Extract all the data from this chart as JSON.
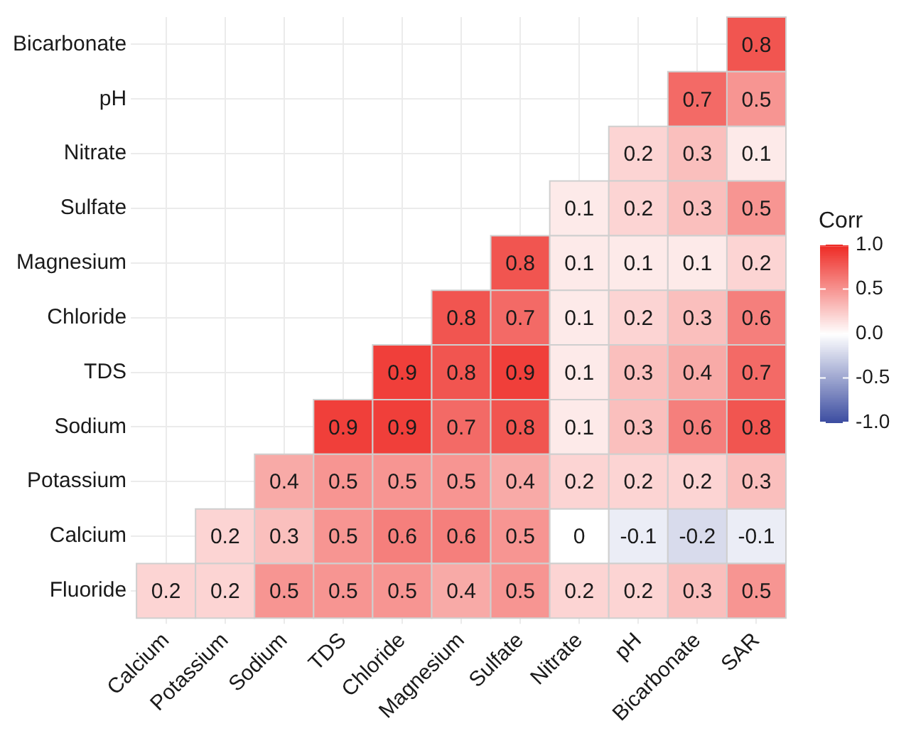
{
  "chart_data": {
    "type": "heatmap",
    "clabel": "Corr",
    "data_labels": true,
    "grid": true,
    "categories": [
      "Calcium",
      "Potassium",
      "Sodium",
      "TDS",
      "Chloride",
      "Magnesium",
      "Sulfate",
      "Nitrate",
      "pH",
      "Bicarbonate",
      "SAR"
    ],
    "y_categories": [
      "Bicarbonate",
      "pH",
      "Nitrate",
      "Sulfate",
      "Magnesium",
      "Chloride",
      "TDS",
      "Sodium",
      "Potassium",
      "Calcium",
      "Fluoride"
    ],
    "cells": [
      [
        null,
        null,
        null,
        null,
        null,
        null,
        null,
        null,
        null,
        null,
        0.8
      ],
      [
        null,
        null,
        null,
        null,
        null,
        null,
        null,
        null,
        null,
        0.7,
        0.5
      ],
      [
        null,
        null,
        null,
        null,
        null,
        null,
        null,
        null,
        0.2,
        0.3,
        0.1
      ],
      [
        null,
        null,
        null,
        null,
        null,
        null,
        null,
        0.1,
        0.2,
        0.3,
        0.5
      ],
      [
        null,
        null,
        null,
        null,
        null,
        null,
        0.8,
        0.1,
        0.1,
        0.1,
        0.2
      ],
      [
        null,
        null,
        null,
        null,
        null,
        0.8,
        0.7,
        0.1,
        0.2,
        0.3,
        0.6
      ],
      [
        null,
        null,
        null,
        null,
        0.9,
        0.8,
        0.9,
        0.1,
        0.3,
        0.4,
        0.7
      ],
      [
        null,
        null,
        null,
        0.9,
        0.9,
        0.7,
        0.8,
        0.1,
        0.3,
        0.6,
        0.8
      ],
      [
        null,
        null,
        0.4,
        0.5,
        0.5,
        0.5,
        0.4,
        0.2,
        0.2,
        0.2,
        0.3
      ],
      [
        null,
        0.2,
        0.3,
        0.5,
        0.6,
        0.6,
        0.5,
        0,
        -0.1,
        -0.2,
        -0.1
      ],
      [
        0.2,
        0.2,
        0.5,
        0.5,
        0.5,
        0.4,
        0.5,
        0.2,
        0.2,
        0.3,
        0.5
      ]
    ],
    "clim": [
      -1,
      1
    ],
    "cticks": [
      {
        "value": -1,
        "label": "-1.0"
      },
      {
        "value": -0.5,
        "label": "-0.5"
      },
      {
        "value": 0,
        "label": "0.0"
      },
      {
        "value": 0.5,
        "label": "0.5"
      },
      {
        "value": 1,
        "label": "1.0"
      }
    ]
  }
}
